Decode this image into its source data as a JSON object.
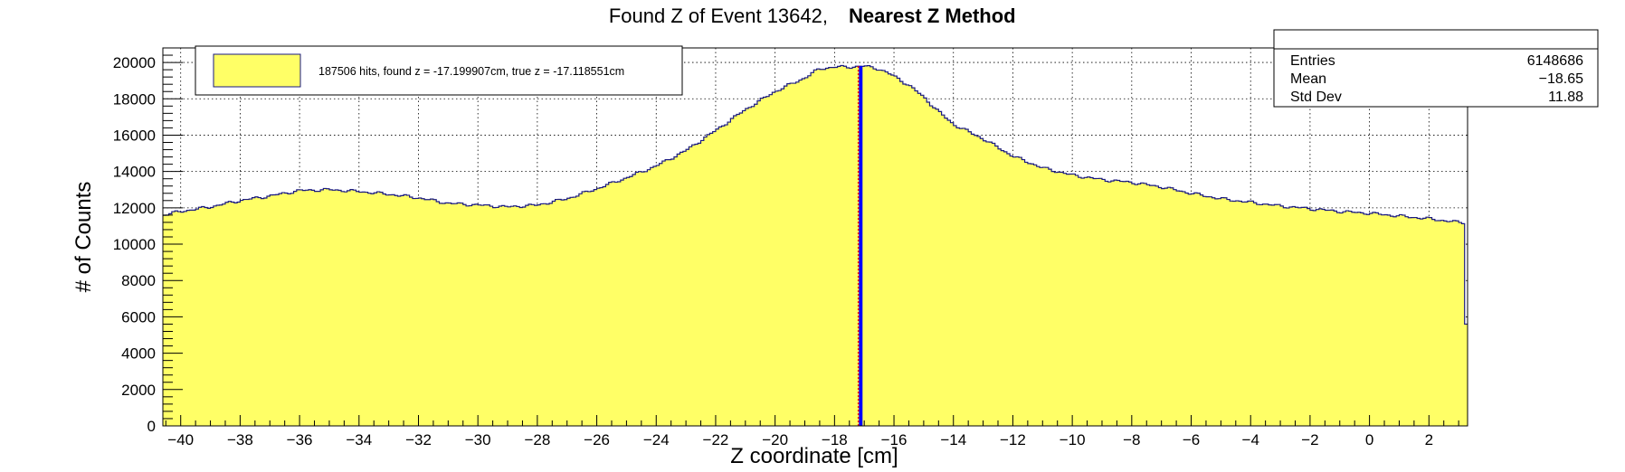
{
  "chart_data": {
    "type": "histogram",
    "title": "Found Z of Event 13642,",
    "title_bold": "Nearest Z Method",
    "xlabel": "Z coordinate [cm]",
    "ylabel": "# of Counts",
    "xlim": [
      -40.6,
      3.3
    ],
    "ylim": [
      0,
      20800
    ],
    "x_ticks": [
      -40,
      -38,
      -36,
      -34,
      -32,
      -30,
      -28,
      -26,
      -24,
      -22,
      -20,
      -18,
      -16,
      -14,
      -12,
      -10,
      -8,
      -6,
      -4,
      -2,
      0,
      2
    ],
    "y_ticks": [
      0,
      2000,
      4000,
      6000,
      8000,
      10000,
      12000,
      14000,
      16000,
      18000,
      20000
    ],
    "grid": true,
    "fill_color": "#ffff66",
    "line_color": "#1a1a80",
    "histogram_outline": [
      [
        -40.6,
        11600
      ],
      [
        -40.0,
        11800
      ],
      [
        -39.0,
        12050
      ],
      [
        -38.0,
        12400
      ],
      [
        -37.0,
        12650
      ],
      [
        -36.0,
        12950
      ],
      [
        -35.0,
        13000
      ],
      [
        -34.0,
        12900
      ],
      [
        -33.0,
        12750
      ],
      [
        -32.0,
        12550
      ],
      [
        -31.0,
        12250
      ],
      [
        -30.0,
        12150
      ],
      [
        -29.0,
        12050
      ],
      [
        -28.0,
        12150
      ],
      [
        -27.0,
        12500
      ],
      [
        -26.0,
        13050
      ],
      [
        -25.0,
        13650
      ],
      [
        -24.0,
        14300
      ],
      [
        -23.0,
        15150
      ],
      [
        -22.0,
        16250
      ],
      [
        -21.0,
        17400
      ],
      [
        -20.0,
        18400
      ],
      [
        -19.0,
        19150
      ],
      [
        -18.5,
        19650
      ],
      [
        -18.0,
        19750
      ],
      [
        -17.5,
        19750
      ],
      [
        -17.0,
        19800
      ],
      [
        -16.5,
        19650
      ],
      [
        -16.0,
        19250
      ],
      [
        -15.5,
        18750
      ],
      [
        -15.0,
        18100
      ],
      [
        -14.5,
        17300
      ],
      [
        -14.0,
        16600
      ],
      [
        -13.0,
        15800
      ],
      [
        -12.0,
        14850
      ],
      [
        -11.0,
        14200
      ],
      [
        -10.0,
        13800
      ],
      [
        -9.0,
        13550
      ],
      [
        -8.0,
        13400
      ],
      [
        -7.0,
        13150
      ],
      [
        -6.0,
        12800
      ],
      [
        -5.0,
        12500
      ],
      [
        -4.0,
        12300
      ],
      [
        -3.0,
        12100
      ],
      [
        -2.0,
        11950
      ],
      [
        -1.0,
        11800
      ],
      [
        0.0,
        11700
      ],
      [
        1.0,
        11550
      ],
      [
        2.0,
        11400
      ],
      [
        3.0,
        11200
      ],
      [
        3.2,
        11200
      ],
      [
        3.2,
        5600
      ],
      [
        3.3,
        5600
      ]
    ],
    "found_z": -17.199907,
    "true_z": -17.118551,
    "found_z_color": "#ff0000",
    "true_z_color": "#0000ff",
    "legend": {
      "position": "top-left",
      "entry": "187506 hits, found z = -17.199907cm, true z = -17.118551cm"
    },
    "stats": {
      "position": "top-right",
      "rows": [
        {
          "label": "Entries",
          "value": "6148686"
        },
        {
          "label": "Mean",
          "value": "−18.65"
        },
        {
          "label": "Std Dev",
          "value": "11.88"
        }
      ]
    }
  }
}
